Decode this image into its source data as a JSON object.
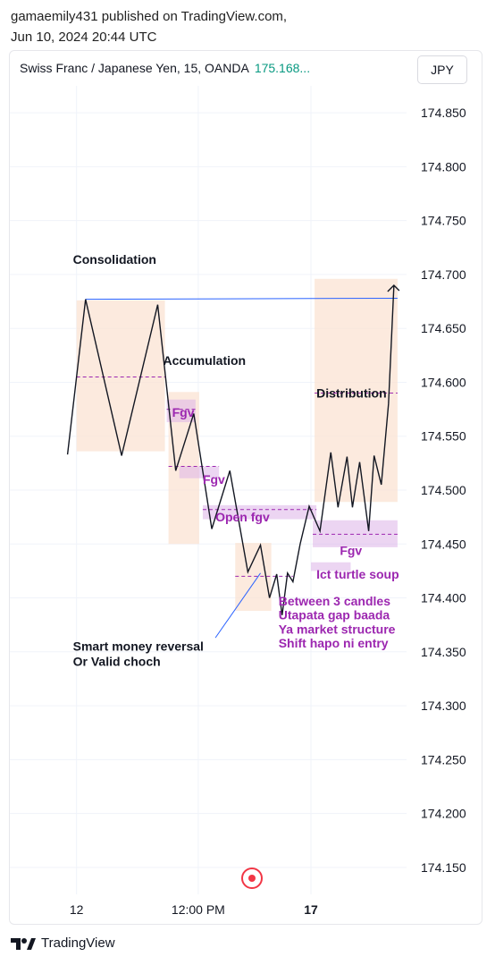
{
  "header": {
    "published_line": "gamaemily431 published on TradingView.com,",
    "date_line": "Jun 10, 2024 20:44 UTC"
  },
  "symbol": {
    "name": "Swiss Franc / Japanese Yen, 15, OANDA",
    "price": "175.168...",
    "currency": "JPY"
  },
  "footer": {
    "brand": "TradingView",
    "logo_icon": "tradingview-logo-icon"
  },
  "colors": {
    "line": "#131722",
    "zone": "#fbe3d3",
    "fgv": "#dcb3e8",
    "label_purple": "#9c27b0",
    "blue_line": "#2962ff",
    "record": "#f23645"
  },
  "chart_data": {
    "type": "line",
    "ylim": [
      174.125,
      174.875
    ],
    "y_ticks": [
      174.85,
      174.8,
      174.75,
      174.7,
      174.65,
      174.6,
      174.55,
      174.5,
      174.45,
      174.4,
      174.35,
      174.3,
      174.25,
      174.2,
      174.15
    ],
    "y_tick_labels": [
      "174.850",
      "174.800",
      "174.750",
      "174.700",
      "174.650",
      "174.600",
      "174.550",
      "174.500",
      "174.450",
      "174.400",
      "174.350",
      "174.300",
      "174.250",
      "174.200",
      "174.150"
    ],
    "x_ticks": [
      {
        "label": "12",
        "x": 0.5
      },
      {
        "label": "12:00 PM",
        "x": 7.25
      },
      {
        "label": "17",
        "x": 13.5
      }
    ],
    "xlim": [
      -3.2,
      18.8
    ],
    "grid": true,
    "series": [
      {
        "x": [
          0,
          1,
          3,
          5,
          6,
          7,
          8,
          9,
          10,
          10.7,
          11.2,
          11.6,
          11.9,
          12.2,
          12.5,
          12.9,
          13.4,
          14,
          14.6,
          15,
          15.5,
          15.8,
          16.2,
          16.7,
          17,
          17.4,
          17.8,
          18.1
        ],
        "y": [
          174.533,
          174.677,
          174.532,
          174.672,
          174.518,
          174.571,
          174.464,
          174.518,
          174.424,
          174.449,
          174.4,
          174.422,
          174.384,
          174.423,
          174.415,
          174.45,
          174.485,
          174.462,
          174.535,
          174.484,
          174.531,
          174.484,
          174.526,
          174.462,
          174.532,
          174.505,
          174.58,
          174.69
        ]
      }
    ],
    "zones": [
      {
        "kind": "zone",
        "x0": 0.5,
        "x1": 5.4,
        "y0": 174.536,
        "y1": 174.676
      },
      {
        "kind": "zone",
        "x0": 5.6,
        "x1": 7.3,
        "y0": 174.45,
        "y1": 174.591
      },
      {
        "kind": "zone",
        "x0": 9.3,
        "x1": 11.3,
        "y0": 174.388,
        "y1": 174.451
      },
      {
        "kind": "zone",
        "x0": 13.7,
        "x1": 18.3,
        "y0": 174.489,
        "y1": 174.696
      },
      {
        "kind": "fgv",
        "x0": 5.5,
        "x1": 7.1,
        "y0": 174.563,
        "y1": 174.584
      },
      {
        "kind": "fgv",
        "x0": 6.2,
        "x1": 8.4,
        "y0": 174.511,
        "y1": 174.522
      },
      {
        "kind": "fgv",
        "x0": 7.5,
        "x1": 13.8,
        "y0": 174.473,
        "y1": 174.486
      },
      {
        "kind": "fgv",
        "x0": 13.6,
        "x1": 18.3,
        "y0": 174.447,
        "y1": 174.472
      },
      {
        "kind": "fgv",
        "x0": 13.5,
        "x1": 15.7,
        "y0": 174.425,
        "y1": 174.433
      }
    ],
    "dashed_lines": [
      {
        "x0": 0.5,
        "x1": 5.4,
        "y": 174.605,
        "color": "#9c27b0"
      },
      {
        "x0": 5.5,
        "x1": 7.1,
        "y": 174.575,
        "color": "#9c27b0"
      },
      {
        "x0": 5.6,
        "x1": 8.4,
        "y": 174.522,
        "color": "#9c27b0"
      },
      {
        "x0": 7.5,
        "x1": 13.8,
        "y": 174.482,
        "color": "#9c27b0"
      },
      {
        "x0": 9.3,
        "x1": 12.5,
        "y": 174.42,
        "color": "#9c27b0"
      },
      {
        "x0": 13.7,
        "x1": 18.3,
        "y": 174.59,
        "color": "#9c27b0"
      },
      {
        "x0": 13.6,
        "x1": 18.3,
        "y": 174.459,
        "color": "#9c27b0"
      }
    ],
    "annotations": [
      {
        "text": "Consolidation",
        "x": 0.3,
        "y": 174.71,
        "color": "#131722"
      },
      {
        "text": "Accumulation",
        "x": 5.3,
        "y": 174.616,
        "color": "#131722"
      },
      {
        "text": "Distribution",
        "x": 13.8,
        "y": 174.586,
        "color": "#131722"
      },
      {
        "text": "Fgv",
        "x": 5.8,
        "y": 174.568,
        "color": "#9c27b0"
      },
      {
        "text": "Fgv",
        "x": 7.5,
        "y": 174.506,
        "color": "#9c27b0"
      },
      {
        "text": "Open fgv",
        "x": 8.2,
        "y": 174.471,
        "color": "#9c27b0"
      },
      {
        "text": "Fgv",
        "x": 15.1,
        "y": 174.44,
        "color": "#9c27b0"
      },
      {
        "text": "Ict turtle soup",
        "x": 13.8,
        "y": 174.418,
        "color": "#9c27b0"
      },
      {
        "text": "Between 3 candles",
        "x": 11.7,
        "y": 174.393,
        "color": "#9c27b0"
      },
      {
        "text": "Utapata gap baada",
        "x": 11.7,
        "y": 174.38,
        "color": "#9c27b0"
      },
      {
        "text": "Ya market structure",
        "x": 11.7,
        "y": 174.367,
        "color": "#9c27b0"
      },
      {
        "text": "Shift hapo ni entry",
        "x": 11.7,
        "y": 174.354,
        "color": "#9c27b0"
      },
      {
        "text": "Smart money reversal",
        "x": 0.3,
        "y": 174.351,
        "color": "#131722"
      },
      {
        "text": "Or Valid choch",
        "x": 0.3,
        "y": 174.337,
        "color": "#131722"
      }
    ],
    "trend_line": {
      "x0": 1,
      "y0": 174.677,
      "x1": 18.3,
      "y1": 174.678,
      "color": "#2962ff"
    },
    "arrow": {
      "x0": 8.2,
      "y0": 174.363,
      "x1": 10.7,
      "y1": 174.423,
      "color": "#2962ff"
    }
  }
}
